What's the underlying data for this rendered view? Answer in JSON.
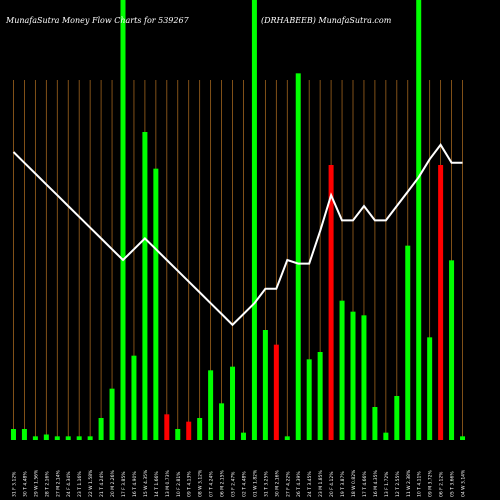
{
  "header": {
    "left": "MunafaSutra  Money Flow  Charts for 539267",
    "right": "(DRHABEEB) MunafaSutra.com"
  },
  "chart_data": {
    "type": "bar",
    "title": "MunafaSutra  Money Flow  Charts for 539267 (DRHABEEB) MunafaSutra.com",
    "categories": [
      "31 Fri Jan 2025",
      "30 Thu Jan 2025",
      "29 Wed Jan 2025",
      "28 Tue Jan 2025",
      "27 Mon Jan 2025",
      "24 Fri Jan 2025",
      "23 Thu Jan 2025",
      "22 Wed Jan 2025",
      "21 Tue Jan 2025",
      "20 Mon Jan 2025",
      "17 Fri Jan 2025",
      "16 Thu Jan 2025",
      "15 Wed Jan 2025",
      "14 Tue Jan 2025",
      "13 Mon Jan 2025",
      "10 Fri Jan 2025",
      "09 Thu Jan 2025",
      "08 Wed Jan 2025",
      "07 Tue Jan 2025",
      "06 Mon Jan 2025",
      "03 Fri Jan 2025",
      "02 Thu Jan 2025",
      "01 Wed Jan 2025",
      "31 Tue Dec 2024",
      "30 Mon Dec 2024",
      "27 Fri Dec 2024",
      "26 Thu Dec 2024",
      "24 Tue Dec 2024",
      "23 Mon Dec 2024",
      "20 Fri Dec 2024",
      "19 Thu Dec 2024",
      "18 Wed Dec 2024",
      "17 Tue Dec 2024",
      "16 Mon Dec 2024",
      "13 Fri Dec 2024",
      "12 Thu Dec 2024",
      "11 Wed Dec 2024",
      "10 Tue Dec 2024",
      "09 Mon Dec 2024",
      "06 Fri Dec 2024",
      "05 Thu Dec 2024",
      "04 Wed Dec 2024"
    ],
    "x_labels": [
      "31 F 3.12%",
      "30 T 4.48%",
      "29 W 1.56%",
      "28 T 2.16%",
      "27 M 2.14%",
      "24 F 4.34%",
      "23 T 1.16%",
      "22 W 1.58%",
      "21 T 4.24%",
      "20 M 2.26%",
      "17 F 3.85%",
      "16 T 4.90%",
      "15 W 4.35%",
      "14 T 1.66%",
      "13 M 0.73%",
      "10 F 2.81%",
      "09 T 4.13%",
      "08 W 3.12%",
      "07 T 4.24%",
      "06 M 2.15%",
      "03 F 2.47%",
      "02 T 4.48%",
      "01 W 1.82%",
      "31 T 3.25%",
      "30 M 2.16%",
      "27 F 4.22%",
      "26 T 4.39%",
      "24 T 3.45%",
      "23 M 1.85%",
      "20 F 4.12%",
      "19 T 3.87%",
      "18 W 0.82%",
      "17 T 4.66%",
      "16 M 4.35%",
      "13 F 1.72%",
      "12 T 2.55%",
      "11 W 2.38%",
      "10 T 4.11%",
      "09 M 3.72%",
      "06 F 2.12%",
      "05 T 3.66%",
      "04 W 3.14%"
    ],
    "values": [
      0.03,
      0.03,
      0.01,
      0.015,
      0.01,
      0.01,
      0.01,
      0.01,
      0.06,
      0.14,
      1.2,
      0.23,
      0.84,
      0.74,
      0.07,
      0.03,
      0.05,
      0.06,
      0.19,
      0.1,
      0.2,
      0.02,
      1.2,
      0.3,
      0.26,
      0.01,
      1.0,
      0.22,
      0.24,
      0.75,
      0.38,
      0.35,
      0.34,
      0.09,
      0.02,
      0.12,
      0.53,
      1.2,
      0.28,
      0.75,
      0.49,
      0.01
    ],
    "direction": [
      "up",
      "up",
      "up",
      "up",
      "up",
      "up",
      "up",
      "up",
      "up",
      "up",
      "up",
      "up",
      "up",
      "up",
      "down",
      "up",
      "down",
      "up",
      "up",
      "up",
      "up",
      "up",
      "up",
      "up",
      "down",
      "up",
      "up",
      "up",
      "up",
      "down",
      "up",
      "up",
      "up",
      "up",
      "up",
      "up",
      "up",
      "up",
      "up",
      "down",
      "up",
      "up"
    ],
    "price_line": [
      0.8,
      0.77,
      0.74,
      0.71,
      0.68,
      0.65,
      0.62,
      0.59,
      0.56,
      0.53,
      0.5,
      0.53,
      0.56,
      0.53,
      0.5,
      0.47,
      0.44,
      0.41,
      0.38,
      0.35,
      0.32,
      0.35,
      0.38,
      0.42,
      0.42,
      0.5,
      0.49,
      0.49,
      0.58,
      0.68,
      0.61,
      0.61,
      0.65,
      0.61,
      0.61,
      0.65,
      0.69,
      0.73,
      0.78,
      0.82,
      0.77,
      0.77
    ],
    "ylim": [
      0,
      1.2
    ],
    "price_range": [
      0,
      1
    ],
    "grid": true,
    "colors": {
      "background": "#000000",
      "up": "#00ff00",
      "down": "#ff0000",
      "price_line": "#ffffff",
      "grid": "#a0641e",
      "text": "#ffffff"
    }
  }
}
